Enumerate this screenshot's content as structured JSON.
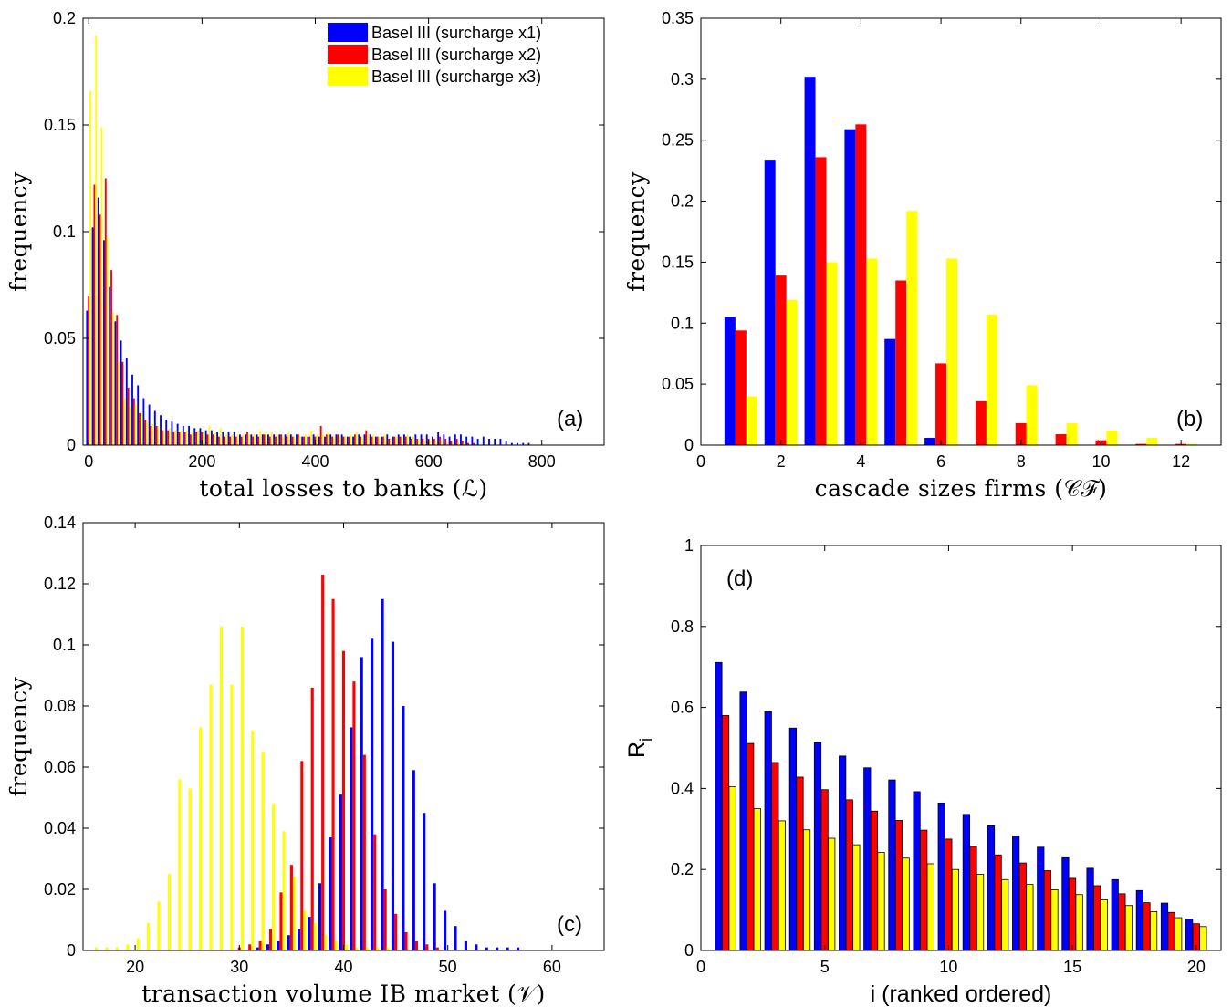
{
  "chart_data": [
    {
      "id": "a",
      "type": "bar",
      "panel_label": "(a)",
      "xlabel": "total losses to banks (ℒ)",
      "ylabel": "frequency",
      "xlim": [
        -10,
        910
      ],
      "ylim": [
        0,
        0.2
      ],
      "xticks": [
        0,
        200,
        400,
        600,
        800
      ],
      "yticks": [
        0,
        0.05,
        0.1,
        0.15,
        0.2
      ],
      "ytick_labels": [
        "0",
        "0.05",
        "0.1",
        "0.15",
        "0.2"
      ],
      "legend": {
        "position": "top-right",
        "entries": [
          "Basel III (surcharge x1)",
          "Basel III (surcharge x2)",
          "Basel III (surcharge x3)"
        ]
      },
      "bin_width": 10,
      "x": [
        0,
        10,
        20,
        30,
        40,
        50,
        60,
        70,
        80,
        90,
        100,
        110,
        120,
        130,
        140,
        150,
        160,
        170,
        180,
        190,
        200,
        210,
        220,
        230,
        240,
        250,
        260,
        270,
        280,
        290,
        300,
        310,
        320,
        330,
        340,
        350,
        360,
        370,
        380,
        390,
        400,
        410,
        420,
        430,
        440,
        450,
        460,
        470,
        480,
        490,
        500,
        510,
        520,
        530,
        540,
        550,
        560,
        570,
        580,
        590,
        600,
        610,
        620,
        630,
        640,
        650,
        660,
        670,
        680,
        690,
        700,
        710,
        720,
        730,
        740,
        750,
        760,
        770,
        780,
        790,
        800,
        810,
        820,
        830,
        840,
        850,
        860,
        870,
        880,
        890,
        900
      ],
      "series": [
        {
          "name": "Basel III (surcharge x1)",
          "color": "#0000ff",
          "values": [
            0.063,
            0.102,
            0.116,
            0.096,
            0.074,
            0.058,
            0.049,
            0.041,
            0.033,
            0.028,
            0.022,
            0.019,
            0.016,
            0.014,
            0.012,
            0.011,
            0.01,
            0.009,
            0.009,
            0.008,
            0.008,
            0.007,
            0.007,
            0.006,
            0.006,
            0.006,
            0.006,
            0.005,
            0.005,
            0.005,
            0.005,
            0.005,
            0.005,
            0.005,
            0.005,
            0.005,
            0.005,
            0.005,
            0.004,
            0.004,
            0.005,
            0.004,
            0.004,
            0.005,
            0.005,
            0.005,
            0.004,
            0.004,
            0.005,
            0.005,
            0.005,
            0.004,
            0.004,
            0.005,
            0.004,
            0.005,
            0.005,
            0.004,
            0.005,
            0.005,
            0.005,
            0.004,
            0.006,
            0.005,
            0.004,
            0.005,
            0.005,
            0.004,
            0.004,
            0.003,
            0.004,
            0.003,
            0.003,
            0.003,
            0.002,
            0.001,
            0.001,
            0.001,
            0.001,
            0,
            0,
            0,
            0,
            0,
            0,
            0,
            0,
            0,
            0,
            0,
            0
          ]
        },
        {
          "name": "Basel III (surcharge x2)",
          "color": "#ff0000",
          "values": [
            0.07,
            0.122,
            0.108,
            0.125,
            0.082,
            0.061,
            0.039,
            0.027,
            0.022,
            0.015,
            0.012,
            0.009,
            0.009,
            0.007,
            0.007,
            0.006,
            0.006,
            0.006,
            0.005,
            0.006,
            0.006,
            0.005,
            0.005,
            0.004,
            0.004,
            0.004,
            0.004,
            0.004,
            0.006,
            0.004,
            0.004,
            0.005,
            0.004,
            0.004,
            0.005,
            0.004,
            0.004,
            0.005,
            0.004,
            0.004,
            0.004,
            0.009,
            0.005,
            0.004,
            0.005,
            0.004,
            0.004,
            0.005,
            0.004,
            0.007,
            0.004,
            0.004,
            0.004,
            0.003,
            0.004,
            0.004,
            0.004,
            0.003,
            0.003,
            0.003,
            0.003,
            0.003,
            0.004,
            0.003,
            0.002,
            0.003,
            0.002,
            0.001,
            0.001,
            0,
            0,
            0,
            0,
            0,
            0,
            0,
            0,
            0,
            0,
            0,
            0,
            0,
            0,
            0,
            0,
            0,
            0,
            0,
            0,
            0,
            0
          ]
        },
        {
          "name": "Basel III (surcharge x3)",
          "color": "#ffff00",
          "values": [
            0.166,
            0.192,
            0.149,
            0.097,
            0.062,
            0.039,
            0.022,
            0.018,
            0.019,
            0.015,
            0.011,
            0.01,
            0.009,
            0.007,
            0.008,
            0.007,
            0.007,
            0.007,
            0.006,
            0.007,
            0.006,
            0.009,
            0.006,
            0.008,
            0.005,
            0.005,
            0.005,
            0.005,
            0.005,
            0.005,
            0.007,
            0.006,
            0.006,
            0.005,
            0.004,
            0.006,
            0.004,
            0.004,
            0.005,
            0.007,
            0.005,
            0.005,
            0.006,
            0.004,
            0.004,
            0.004,
            0.005,
            0.006,
            0.004,
            0.005,
            0.005,
            0.004,
            0.005,
            0.003,
            0.004,
            0.004,
            0.005,
            0.004,
            0.003,
            0.002,
            0.002,
            0.002,
            0.002,
            0.001,
            0.001,
            0.001,
            0.001,
            0,
            0,
            0,
            0,
            0,
            0,
            0,
            0,
            0,
            0,
            0,
            0,
            0,
            0,
            0,
            0,
            0,
            0,
            0,
            0,
            0,
            0,
            0,
            0
          ]
        }
      ]
    },
    {
      "id": "b",
      "type": "bar",
      "panel_label": "(b)",
      "xlabel": "cascade sizes firms (𝒞ℱ)",
      "ylabel": "frequency",
      "xlim": [
        0,
        13
      ],
      "ylim": [
        0,
        0.35
      ],
      "xticks": [
        0,
        2,
        4,
        6,
        8,
        10,
        12
      ],
      "yticks": [
        0,
        0.05,
        0.1,
        0.15,
        0.2,
        0.25,
        0.3,
        0.35
      ],
      "ytick_labels": [
        "0",
        "0.05",
        "0.1",
        "0.15",
        "0.2",
        "0.25",
        "0.3",
        "0.35"
      ],
      "bin_width": 1,
      "x": [
        1,
        2,
        3,
        4,
        5,
        6,
        7,
        8,
        9,
        10,
        11,
        12
      ],
      "series": [
        {
          "name": "Basel III (surcharge x1)",
          "color": "#0000ff",
          "values": [
            0.105,
            0.234,
            0.302,
            0.259,
            0.087,
            0.006,
            0,
            0,
            0,
            0,
            0,
            0
          ]
        },
        {
          "name": "Basel III (surcharge x2)",
          "color": "#ff0000",
          "values": [
            0.094,
            0.139,
            0.236,
            0.263,
            0.135,
            0.067,
            0.036,
            0.018,
            0.009,
            0.004,
            0.001,
            0.001
          ]
        },
        {
          "name": "Basel III (surcharge x3)",
          "color": "#ffff00",
          "values": [
            0.04,
            0.119,
            0.15,
            0.153,
            0.192,
            0.153,
            0.107,
            0.049,
            0.018,
            0.012,
            0.006,
            0.001
          ]
        }
      ]
    },
    {
      "id": "c",
      "type": "bar",
      "panel_label": "(c)",
      "xlabel": "transaction volume IB market (𝒱)",
      "ylabel": "frequency",
      "xlim": [
        15,
        65
      ],
      "ylim": [
        0,
        0.14
      ],
      "xticks": [
        20,
        30,
        40,
        50,
        60
      ],
      "yticks": [
        0,
        0.02,
        0.04,
        0.06,
        0.08,
        0.1,
        0.12,
        0.14
      ],
      "ytick_labels": [
        "0",
        "0.02",
        "0.04",
        "0.06",
        "0.08",
        "0.1",
        "0.12",
        "0.14"
      ],
      "bin_width": 1,
      "x": [
        16,
        17,
        18,
        19,
        20,
        21,
        22,
        23,
        24,
        25,
        26,
        27,
        28,
        29,
        30,
        31,
        32,
        33,
        34,
        35,
        36,
        37,
        38,
        39,
        40,
        41,
        42,
        43,
        44,
        45,
        46,
        47,
        48,
        49,
        50,
        51,
        52,
        53,
        54,
        55,
        56,
        57,
        58,
        59,
        60,
        61,
        62,
        63,
        64
      ],
      "series": [
        {
          "name": "Basel III (surcharge x1)",
          "color": "#0000ff",
          "values": [
            0,
            0,
            0,
            0,
            0,
            0,
            0,
            0,
            0,
            0,
            0,
            0,
            0,
            0,
            0,
            0,
            0.001,
            0.002,
            0.003,
            0.005,
            0.007,
            0.011,
            0.022,
            0.037,
            0.051,
            0.073,
            0.096,
            0.102,
            0.115,
            0.101,
            0.08,
            0.059,
            0.045,
            0.022,
            0.013,
            0.008,
            0.003,
            0.002,
            0.001,
            0.001,
            0.001,
            0.001,
            0,
            0,
            0,
            0,
            0,
            0,
            0
          ]
        },
        {
          "name": "Basel III (surcharge x2)",
          "color": "#ff0000",
          "values": [
            0,
            0,
            0,
            0,
            0,
            0,
            0,
            0,
            0,
            0,
            0,
            0,
            0,
            0,
            0.001,
            0.002,
            0.003,
            0.007,
            0.019,
            0.028,
            0.062,
            0.086,
            0.123,
            0.115,
            0.098,
            0.088,
            0.064,
            0.038,
            0.02,
            0.012,
            0.006,
            0.003,
            0.002,
            0.001,
            0,
            0,
            0,
            0,
            0,
            0,
            0,
            0,
            0,
            0,
            0,
            0,
            0,
            0,
            0
          ]
        },
        {
          "name": "Basel III (surcharge x3)",
          "color": "#ffff00",
          "values": [
            0.001,
            0.001,
            0.001,
            0.002,
            0.004,
            0.009,
            0.016,
            0.025,
            0.056,
            0.053,
            0.073,
            0.087,
            0.106,
            0.087,
            0.106,
            0.072,
            0.065,
            0.048,
            0.039,
            0.024,
            0.013,
            0.009,
            0.005,
            0.003,
            0.002,
            0.001,
            0.001,
            0.001,
            0.001,
            0,
            0,
            0,
            0,
            0,
            0,
            0,
            0,
            0,
            0,
            0,
            0,
            0,
            0,
            0,
            0,
            0,
            0,
            0,
            0
          ]
        }
      ]
    },
    {
      "id": "d",
      "type": "bar",
      "panel_label": "(d)",
      "xlabel": "i (ranked ordered)",
      "ylabel": "R",
      "ylabel_subscript": "i",
      "xlim": [
        0,
        21
      ],
      "ylim": [
        0,
        1
      ],
      "xticks": [
        0,
        5,
        10,
        15,
        20
      ],
      "yticks": [
        0,
        0.2,
        0.4,
        0.6,
        0.8,
        1
      ],
      "ytick_labels": [
        "0",
        "0.2",
        "0.4",
        "0.6",
        "0.8",
        "1"
      ],
      "bin_width": 1,
      "x": [
        1,
        2,
        3,
        4,
        5,
        6,
        7,
        8,
        9,
        10,
        11,
        12,
        13,
        14,
        15,
        16,
        17,
        18,
        19,
        20
      ],
      "series": [
        {
          "name": "Basel III (surcharge x1)",
          "color": "#0000ff",
          "values": [
            0.711,
            0.638,
            0.589,
            0.549,
            0.513,
            0.48,
            0.451,
            0.421,
            0.392,
            0.364,
            0.336,
            0.308,
            0.282,
            0.255,
            0.229,
            0.203,
            0.175,
            0.148,
            0.117,
            0.077
          ]
        },
        {
          "name": "Basel III (surcharge x2)",
          "color": "#ff0000",
          "values": [
            0.58,
            0.511,
            0.464,
            0.428,
            0.397,
            0.372,
            0.344,
            0.321,
            0.297,
            0.275,
            0.257,
            0.236,
            0.216,
            0.197,
            0.178,
            0.16,
            0.14,
            0.118,
            0.094,
            0.066
          ]
        },
        {
          "name": "Basel III (surcharge x3)",
          "color": "#ffff00",
          "values": [
            0.404,
            0.35,
            0.32,
            0.298,
            0.277,
            0.261,
            0.242,
            0.228,
            0.214,
            0.2,
            0.188,
            0.175,
            0.163,
            0.15,
            0.138,
            0.125,
            0.111,
            0.096,
            0.081,
            0.059
          ]
        }
      ]
    }
  ]
}
